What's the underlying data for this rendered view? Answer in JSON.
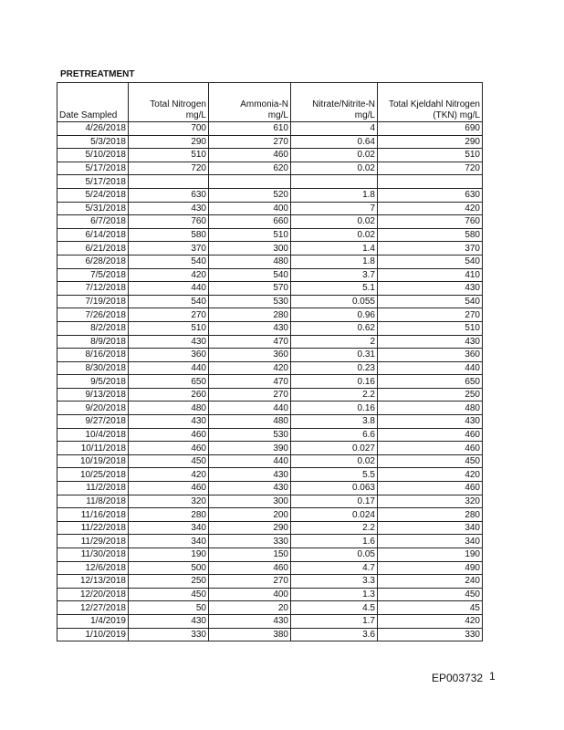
{
  "header": {
    "title": "PRETREATMENT"
  },
  "table": {
    "columns": [
      [
        "Date Sampled"
      ],
      [
        "Total Nitrogen",
        "mg/L"
      ],
      [
        "Ammonia-N",
        "mg/L"
      ],
      [
        "Nitrate/Nitrite-N",
        "mg/L"
      ],
      [
        "Total Kjeldahl Nitrogen",
        "(TKN)  mg/L"
      ]
    ],
    "rows": [
      [
        "4/26/2018",
        700,
        610,
        4,
        690
      ],
      [
        "5/3/2018",
        290,
        270,
        0.64,
        290
      ],
      [
        "5/10/2018",
        510,
        460,
        0.02,
        510
      ],
      [
        "5/17/2018",
        720,
        620,
        0.02,
        720
      ],
      [
        "5/17/2018",
        null,
        null,
        null,
        null
      ],
      [
        "5/24/2018",
        630,
        520,
        1.8,
        630
      ],
      [
        "5/31/2018",
        430,
        400,
        7,
        420
      ],
      [
        "6/7/2018",
        760,
        660,
        0.02,
        760
      ],
      [
        "6/14/2018",
        580,
        510,
        0.02,
        580
      ],
      [
        "6/21/2018",
        370,
        300,
        1.4,
        370
      ],
      [
        "6/28/2018",
        540,
        480,
        1.8,
        540
      ],
      [
        "7/5/2018",
        420,
        540,
        3.7,
        410
      ],
      [
        "7/12/2018",
        440,
        570,
        5.1,
        430
      ],
      [
        "7/19/2018",
        540,
        530,
        0.055,
        540
      ],
      [
        "7/26/2018",
        270,
        280,
        0.96,
        270
      ],
      [
        "8/2/2018",
        510,
        430,
        0.62,
        510
      ],
      [
        "8/9/2018",
        430,
        470,
        2,
        430
      ],
      [
        "8/16/2018",
        360,
        360,
        0.31,
        360
      ],
      [
        "8/30/2018",
        440,
        420,
        0.23,
        440
      ],
      [
        "9/5/2018",
        650,
        470,
        0.16,
        650
      ],
      [
        "9/13/2018",
        260,
        270,
        2.2,
        250
      ],
      [
        "9/20/2018",
        480,
        440,
        0.16,
        480
      ],
      [
        "9/27/2018",
        430,
        480,
        3.8,
        430
      ],
      [
        "10/4/2018",
        460,
        530,
        6.6,
        460
      ],
      [
        "10/11/2018",
        460,
        390,
        0.027,
        460
      ],
      [
        "10/19/2018",
        450,
        440,
        0.02,
        450
      ],
      [
        "10/25/2018",
        420,
        430,
        5.5,
        420
      ],
      [
        "11/2/2018",
        460,
        430,
        0.063,
        460
      ],
      [
        "11/8/2018",
        320,
        300,
        0.17,
        320
      ],
      [
        "11/16/2018",
        280,
        200,
        0.024,
        280
      ],
      [
        "11/22/2018",
        340,
        290,
        2.2,
        340
      ],
      [
        "11/29/2018",
        340,
        330,
        1.6,
        340
      ],
      [
        "11/30/2018",
        190,
        150,
        0.05,
        190
      ],
      [
        "12/6/2018",
        500,
        460,
        4.7,
        490
      ],
      [
        "12/13/2018",
        250,
        270,
        3.3,
        240
      ],
      [
        "12/20/2018",
        450,
        400,
        1.3,
        450
      ],
      [
        "12/27/2018",
        50,
        20,
        4.5,
        45
      ],
      [
        "1/4/2019",
        430,
        430,
        1.7,
        420
      ],
      [
        "1/10/2019",
        330,
        380,
        3.6,
        330
      ]
    ]
  },
  "footer": {
    "bates": "EP003732",
    "page": "1"
  }
}
